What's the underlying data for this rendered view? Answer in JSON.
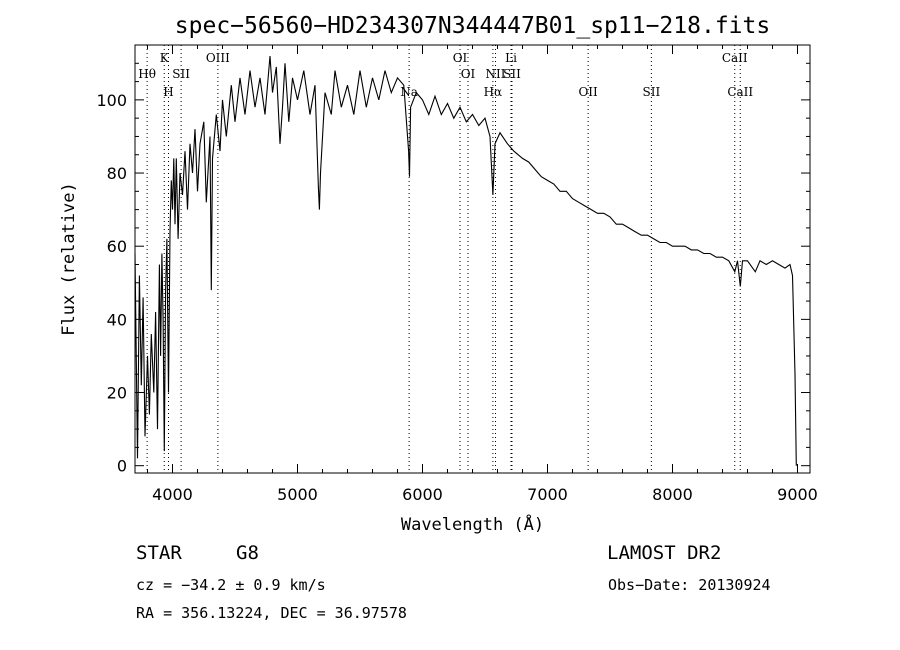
{
  "chart_data": {
    "type": "line",
    "title": "spec−56560−HD234307N344447B01_sp11−218.fits",
    "xlabel": "Wavelength (Å)",
    "ylabel": "Flux (relative)",
    "xlim": [
      3700,
      9100
    ],
    "ylim": [
      -2,
      115
    ],
    "xticks": [
      4000,
      5000,
      6000,
      7000,
      8000,
      9000
    ],
    "yticks": [
      0,
      20,
      40,
      60,
      80,
      100
    ],
    "grid": false,
    "legend": "none",
    "series": [
      {
        "points": [
          [
            3700,
            58
          ],
          [
            3720,
            2
          ],
          [
            3735,
            52
          ],
          [
            3750,
            22
          ],
          [
            3765,
            46
          ],
          [
            3780,
            8
          ],
          [
            3800,
            30
          ],
          [
            3815,
            14
          ],
          [
            3830,
            36
          ],
          [
            3850,
            20
          ],
          [
            3865,
            42
          ],
          [
            3880,
            10
          ],
          [
            3895,
            55
          ],
          [
            3905,
            30
          ],
          [
            3915,
            58
          ],
          [
            3925,
            40
          ],
          [
            3934,
            4
          ],
          [
            3945,
            48
          ],
          [
            3955,
            62
          ],
          [
            3968,
            20
          ],
          [
            3980,
            64
          ],
          [
            3990,
            78
          ],
          [
            4000,
            70
          ],
          [
            4010,
            84
          ],
          [
            4020,
            66
          ],
          [
            4030,
            84
          ],
          [
            4045,
            62
          ],
          [
            4060,
            80
          ],
          [
            4080,
            74
          ],
          [
            4100,
            86
          ],
          [
            4120,
            70
          ],
          [
            4140,
            88
          ],
          [
            4160,
            80
          ],
          [
            4180,
            92
          ],
          [
            4200,
            75
          ],
          [
            4220,
            88
          ],
          [
            4250,
            94
          ],
          [
            4270,
            72
          ],
          [
            4300,
            90
          ],
          [
            4310,
            48
          ],
          [
            4320,
            84
          ],
          [
            4350,
            96
          ],
          [
            4380,
            86
          ],
          [
            4400,
            100
          ],
          [
            4430,
            90
          ],
          [
            4470,
            104
          ],
          [
            4500,
            94
          ],
          [
            4540,
            106
          ],
          [
            4580,
            96
          ],
          [
            4620,
            108
          ],
          [
            4660,
            98
          ],
          [
            4700,
            106
          ],
          [
            4740,
            96
          ],
          [
            4780,
            112
          ],
          [
            4800,
            102
          ],
          [
            4830,
            109
          ],
          [
            4860,
            88
          ],
          [
            4880,
            98
          ],
          [
            4900,
            110
          ],
          [
            4930,
            94
          ],
          [
            4960,
            106
          ],
          [
            5000,
            100
          ],
          [
            5050,
            108
          ],
          [
            5100,
            96
          ],
          [
            5140,
            104
          ],
          [
            5167,
            76
          ],
          [
            5175,
            70
          ],
          [
            5184,
            80
          ],
          [
            5220,
            102
          ],
          [
            5270,
            96
          ],
          [
            5300,
            108
          ],
          [
            5350,
            98
          ],
          [
            5400,
            104
          ],
          [
            5450,
            96
          ],
          [
            5500,
            108
          ],
          [
            5550,
            98
          ],
          [
            5600,
            106
          ],
          [
            5650,
            100
          ],
          [
            5700,
            108
          ],
          [
            5750,
            102
          ],
          [
            5800,
            106
          ],
          [
            5850,
            104
          ],
          [
            5889,
            86
          ],
          [
            5896,
            79
          ],
          [
            5905,
            98
          ],
          [
            5950,
            102
          ],
          [
            6000,
            100
          ],
          [
            6050,
            96
          ],
          [
            6100,
            101
          ],
          [
            6150,
            96
          ],
          [
            6200,
            99
          ],
          [
            6250,
            95
          ],
          [
            6300,
            98
          ],
          [
            6350,
            94
          ],
          [
            6400,
            96
          ],
          [
            6450,
            93
          ],
          [
            6500,
            95
          ],
          [
            6540,
            90
          ],
          [
            6563,
            74
          ],
          [
            6580,
            88
          ],
          [
            6620,
            91
          ],
          [
            6680,
            88
          ],
          [
            6730,
            86
          ],
          [
            6800,
            84
          ],
          [
            6850,
            83
          ],
          [
            6900,
            81
          ],
          [
            6950,
            79
          ],
          [
            7000,
            78
          ],
          [
            7050,
            77
          ],
          [
            7100,
            75
          ],
          [
            7150,
            75
          ],
          [
            7200,
            73
          ],
          [
            7250,
            72
          ],
          [
            7300,
            71
          ],
          [
            7350,
            70
          ],
          [
            7400,
            69
          ],
          [
            7450,
            69
          ],
          [
            7500,
            68
          ],
          [
            7550,
            66
          ],
          [
            7600,
            66
          ],
          [
            7650,
            65
          ],
          [
            7700,
            64
          ],
          [
            7750,
            63
          ],
          [
            7800,
            63
          ],
          [
            7850,
            62
          ],
          [
            7900,
            61
          ],
          [
            7950,
            61
          ],
          [
            8000,
            60
          ],
          [
            8050,
            60
          ],
          [
            8100,
            60
          ],
          [
            8150,
            59
          ],
          [
            8200,
            59
          ],
          [
            8250,
            58
          ],
          [
            8300,
            58
          ],
          [
            8350,
            57
          ],
          [
            8400,
            57
          ],
          [
            8450,
            56
          ],
          [
            8498,
            53
          ],
          [
            8520,
            56
          ],
          [
            8542,
            49
          ],
          [
            8560,
            56
          ],
          [
            8600,
            56
          ],
          [
            8662,
            53
          ],
          [
            8700,
            56
          ],
          [
            8750,
            55
          ],
          [
            8800,
            56
          ],
          [
            8850,
            55
          ],
          [
            8900,
            54
          ],
          [
            8940,
            55
          ],
          [
            8960,
            52
          ],
          [
            8980,
            25
          ],
          [
            8990,
            0
          ]
        ]
      }
    ],
    "line_markers": [
      {
        "label": "Hθ",
        "x": 3797,
        "row": 2
      },
      {
        "label": "K",
        "x": 3934,
        "row": 1
      },
      {
        "label": "H",
        "x": 3968,
        "row": 3
      },
      {
        "label": "SII",
        "x": 4069,
        "row": 2
      },
      {
        "label": "OIII",
        "x": 4363,
        "row": 1
      },
      {
        "label": "Na",
        "x": 5893,
        "row": 3
      },
      {
        "label": "OI",
        "x": 6300,
        "row": 1
      },
      {
        "label": "OI",
        "x": 6364,
        "row": 2
      },
      {
        "label": "Hα",
        "x": 6563,
        "row": 3
      },
      {
        "label": "NII",
        "x": 6584,
        "row": 2
      },
      {
        "label": "Li",
        "x": 6708,
        "row": 1
      },
      {
        "label": "SII",
        "x": 6716,
        "row": 2
      },
      {
        "label": "OII",
        "x": 7325,
        "row": 3
      },
      {
        "label": "SII",
        "x": 7831,
        "row": 3
      },
      {
        "label": "CaII",
        "x": 8498,
        "row": 1
      },
      {
        "label": "CaII",
        "x": 8542,
        "row": 3
      }
    ]
  },
  "info": {
    "class": "STAR",
    "subclass": "G8",
    "survey": "LAMOST DR2",
    "cz": "cz = −34.2 ± 0.9 km/s",
    "obs_date": "Obs−Date: 20130924",
    "radec": "RA = 356.13224, DEC =  36.97578"
  }
}
